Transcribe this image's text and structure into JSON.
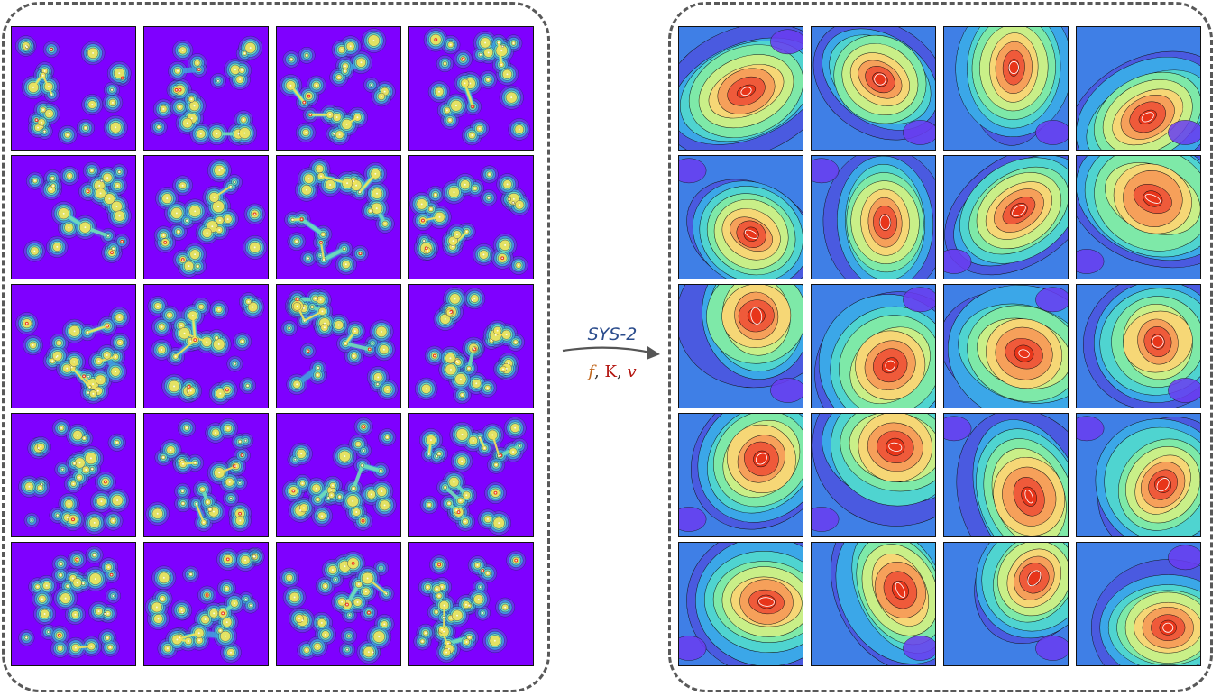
{
  "operator": {
    "name": "SYS-2",
    "params": [
      {
        "symbol": "f",
        "color": "#c0651a"
      },
      {
        "symbol": "K",
        "color": "#b3140f"
      },
      {
        "symbol": "v",
        "color": "#b3140f"
      }
    ],
    "separator": ","
  },
  "colors": {
    "input_background": "#7f00ff",
    "panel_border": "#595959",
    "label_color": "#2b4c8c"
  }
}
